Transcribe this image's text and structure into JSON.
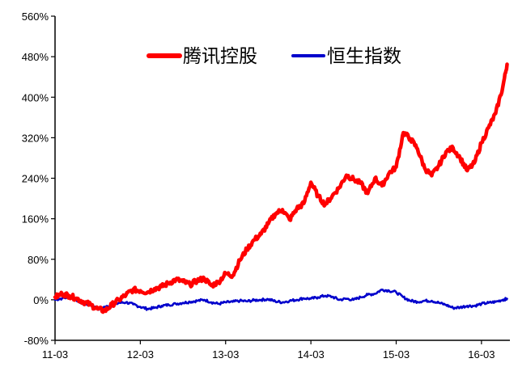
{
  "chart_data": {
    "type": "line",
    "x_tick_labels": [
      "11-03",
      "12-03",
      "13-03",
      "14-03",
      "15-03",
      "16-03"
    ],
    "y_tick_labels": [
      "-80%",
      "0%",
      "80%",
      "160%",
      "240%",
      "320%",
      "400%",
      "480%",
      "560%"
    ],
    "ylim": [
      -80,
      560
    ],
    "x_range_months": [
      0,
      64
    ],
    "y_unit": "%",
    "grid": false,
    "legend_position": "top-center",
    "series": [
      {
        "name": "腾讯控股",
        "color": "#ff0000",
        "x": [
          0,
          1,
          2,
          3,
          4,
          5,
          6,
          7,
          8,
          9,
          10,
          11,
          12,
          13,
          14,
          15,
          16,
          17,
          18,
          19,
          20,
          21,
          22,
          23,
          24,
          25,
          26,
          27,
          28,
          29,
          30,
          31,
          32,
          33,
          34,
          35,
          36,
          37,
          38,
          39,
          40,
          41,
          42,
          43,
          44,
          45,
          46,
          47,
          48,
          49,
          50,
          51,
          52,
          53,
          54,
          55,
          56,
          57,
          58,
          59,
          60,
          61,
          62,
          63,
          63.6
        ],
        "values": [
          5,
          12,
          8,
          3,
          -4,
          -10,
          -18,
          -22,
          -10,
          0,
          10,
          20,
          18,
          15,
          22,
          26,
          33,
          40,
          36,
          30,
          38,
          42,
          28,
          35,
          52,
          48,
          78,
          100,
          118,
          130,
          150,
          170,
          178,
          158,
          180,
          190,
          232,
          205,
          188,
          205,
          222,
          246,
          238,
          230,
          210,
          240,
          225,
          250,
          262,
          330,
          318,
          298,
          260,
          245,
          265,
          292,
          300,
          280,
          255,
          270,
          310,
          340,
          368,
          420,
          465
        ],
        "style": "bold"
      },
      {
        "name": "恒生指数",
        "color": "#0000cc",
        "x": [
          0,
          1,
          2,
          3,
          4,
          5,
          6,
          7,
          8,
          9,
          10,
          11,
          12,
          13,
          14,
          15,
          16,
          17,
          18,
          19,
          20,
          21,
          22,
          23,
          24,
          25,
          26,
          27,
          28,
          29,
          30,
          31,
          32,
          33,
          34,
          35,
          36,
          37,
          38,
          39,
          40,
          41,
          42,
          43,
          44,
          45,
          46,
          47,
          48,
          49,
          50,
          51,
          52,
          53,
          54,
          55,
          56,
          57,
          58,
          59,
          60,
          61,
          62,
          63,
          63.6
        ],
        "values": [
          0,
          3,
          5,
          0,
          -8,
          -10,
          -18,
          -14,
          -12,
          -6,
          -5,
          -9,
          -14,
          -18,
          -16,
          -12,
          -10,
          -8,
          -6,
          -4,
          -2,
          0,
          -5,
          -8,
          -5,
          -4,
          -2,
          -3,
          -1,
          0,
          1,
          -3,
          -5,
          -2,
          0,
          3,
          2,
          5,
          8,
          6,
          0,
          2,
          0,
          5,
          10,
          12,
          20,
          18,
          15,
          5,
          -2,
          -4,
          -2,
          -2,
          -6,
          -10,
          -16,
          -15,
          -12,
          -12,
          -8,
          -6,
          -4,
          0,
          2
        ],
        "style": "regular"
      }
    ]
  }
}
